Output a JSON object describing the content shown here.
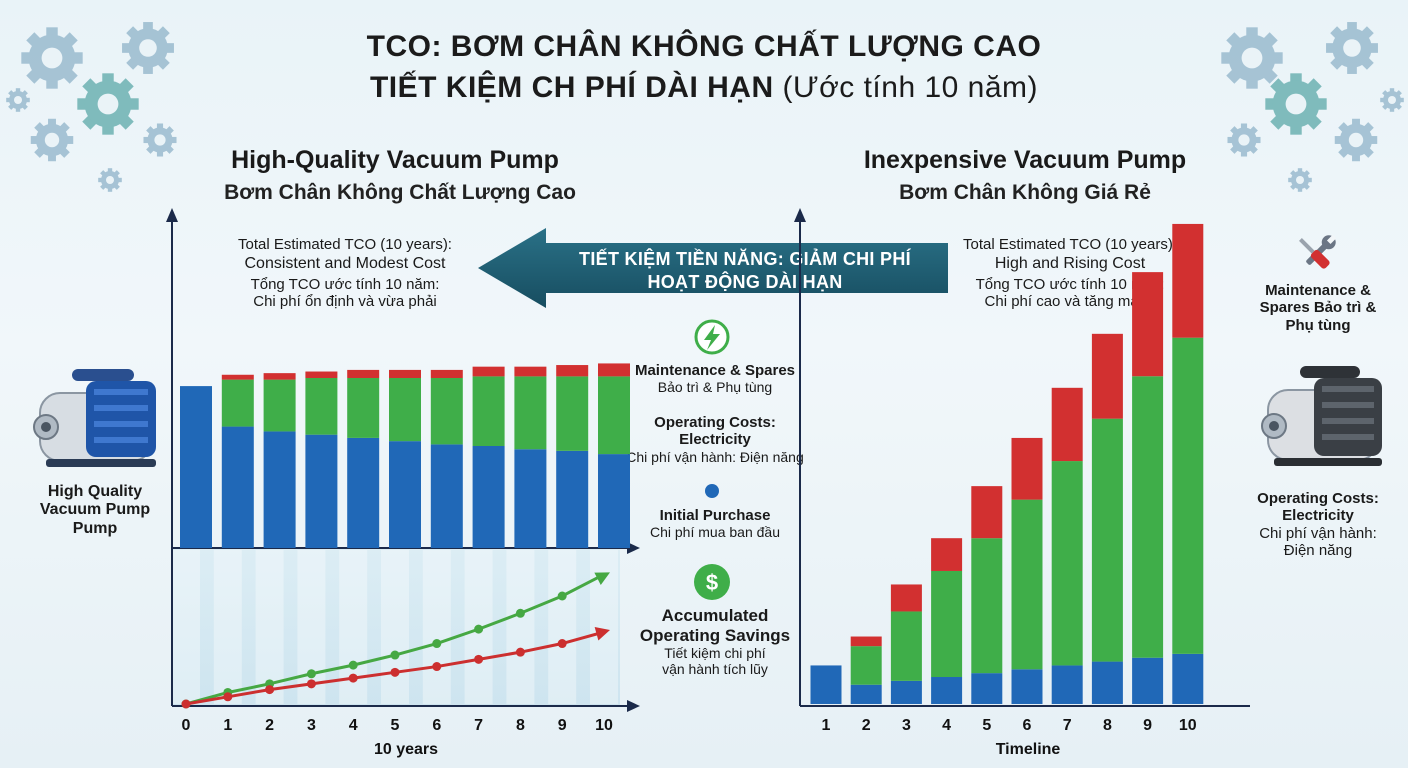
{
  "title": {
    "line1": "TCO: BƠM CHÂN KHÔNG CHẤT LƯỢNG CAO",
    "line2_bold": "TIẾT KIỆM CH PHÍ DÀI HẠN",
    "line2_normal": " (Ước tính 10 năm)"
  },
  "left_panel": {
    "title": "High-Quality Vacuum Pump",
    "subtitle": "Bơm Chân Không Chất Lượng Cao",
    "note": {
      "l1": "Total Estimated TCO (10 years):",
      "l2": "Consistent and Modest Cost",
      "l3": "Tổng TCO ước tính 10 năm:",
      "l4": "Chi phí ổn định và vừa phải"
    },
    "pump_label": {
      "l1": "High Quality",
      "l2": "Vacuum Pump",
      "l3": "Pump"
    }
  },
  "right_panel": {
    "title": "Inexpensive Vacuum Pump",
    "subtitle": "Bơm Chân Không Giá Rẻ",
    "note": {
      "l1": "Total Estimated TCO (10 years):",
      "l2": "High and Rising Cost",
      "l3": "Tổng TCO ước tính 10 năm:",
      "l4": "Chi phí cao và tăng mạnh"
    }
  },
  "arrow": {
    "line1": "TIẾT KIỆM TIỀN NĂNG: GIẢM CHI PHÍ",
    "line2": "HOẠT ĐỘNG DÀI HẠN"
  },
  "center_legend": {
    "maintenance": {
      "l1": "Maintenance & Spares",
      "l2": "Bảo trì & Phụ tùng"
    },
    "operating": {
      "l1": "Operating Costs:",
      "l2": "Electricity",
      "l3": "Chi phí vận hành: Điện năng"
    },
    "initial": {
      "l1": "Initial Purchase",
      "l2": "Chi phí mua ban đầu"
    },
    "savings": {
      "l1": "Accumulated",
      "l2": "Operating Savings",
      "l3": "Tiết kiệm chi phí",
      "l4": "vận hành tích lũy"
    }
  },
  "right_legend": {
    "maintenance": {
      "l1": "Maintenance &",
      "l2": "Spares Bảo trì &",
      "l3": "Phụ tùng"
    },
    "operating": {
      "l1": "Operating Costs:",
      "l2": "Electricity",
      "l3": "Chi phí vận hành:",
      "l4": "Điện năng"
    }
  },
  "colors": {
    "initial": "#2068b7",
    "operating": "#3fae49",
    "maintenance": "#d23030",
    "arrow": "#1f5d72",
    "green_line": "#46a843",
    "red_line": "#cc2f2f"
  },
  "icons": [
    "gear-icon",
    "bolt-icon",
    "dollar-icon",
    "wrench-screwdriver-icon",
    "vacuum-pump-icon"
  ],
  "chart_data": [
    {
      "type": "bar",
      "stacked": true,
      "categories": [
        "0",
        "1",
        "2",
        "3",
        "4",
        "5",
        "6",
        "7",
        "8",
        "9",
        "10"
      ],
      "series": [
        {
          "name": "Initial Purchase",
          "values": [
            100,
            75,
            72,
            70,
            68,
            66,
            64,
            63,
            61,
            60,
            58
          ]
        },
        {
          "name": "Operating Costs: Electricity",
          "values": [
            0,
            29,
            32,
            35,
            37,
            39,
            41,
            43,
            45,
            46,
            48
          ]
        },
        {
          "name": "Maintenance & Spares",
          "values": [
            0,
            3,
            4,
            4,
            5,
            5,
            5,
            6,
            6,
            7,
            8
          ]
        }
      ],
      "ylim": [
        0,
        210
      ]
    },
    {
      "type": "line",
      "x": [
        0,
        1,
        2,
        3,
        4,
        5,
        6,
        7,
        8,
        9,
        10
      ],
      "series": [
        {
          "name": "Accumulated Operating Savings",
          "values": [
            0,
            8,
            14,
            21,
            27,
            34,
            42,
            52,
            63,
            75,
            90
          ]
        },
        {
          "name": "",
          "values": [
            0,
            5,
            10,
            14,
            18,
            22,
            26,
            31,
            36,
            42,
            50
          ]
        }
      ],
      "xlabel": "10 years",
      "ylim": [
        0,
        100
      ]
    },
    {
      "type": "bar",
      "stacked": true,
      "categories": [
        "1",
        "2",
        "3",
        "4",
        "5",
        "6",
        "7",
        "8",
        "9",
        "10"
      ],
      "series": [
        {
          "name": "Initial Purchase",
          "values": [
            20,
            10,
            12,
            14,
            16,
            18,
            20,
            22,
            24,
            26
          ]
        },
        {
          "name": "Operating Costs: Electricity",
          "values": [
            0,
            20,
            36,
            55,
            70,
            88,
            106,
            126,
            146,
            164
          ]
        },
        {
          "name": "Maintenance & Spares",
          "values": [
            0,
            5,
            14,
            17,
            27,
            32,
            38,
            44,
            54,
            59
          ]
        }
      ],
      "xlabel": "Timeline",
      "ylim": [
        0,
        250
      ]
    }
  ]
}
